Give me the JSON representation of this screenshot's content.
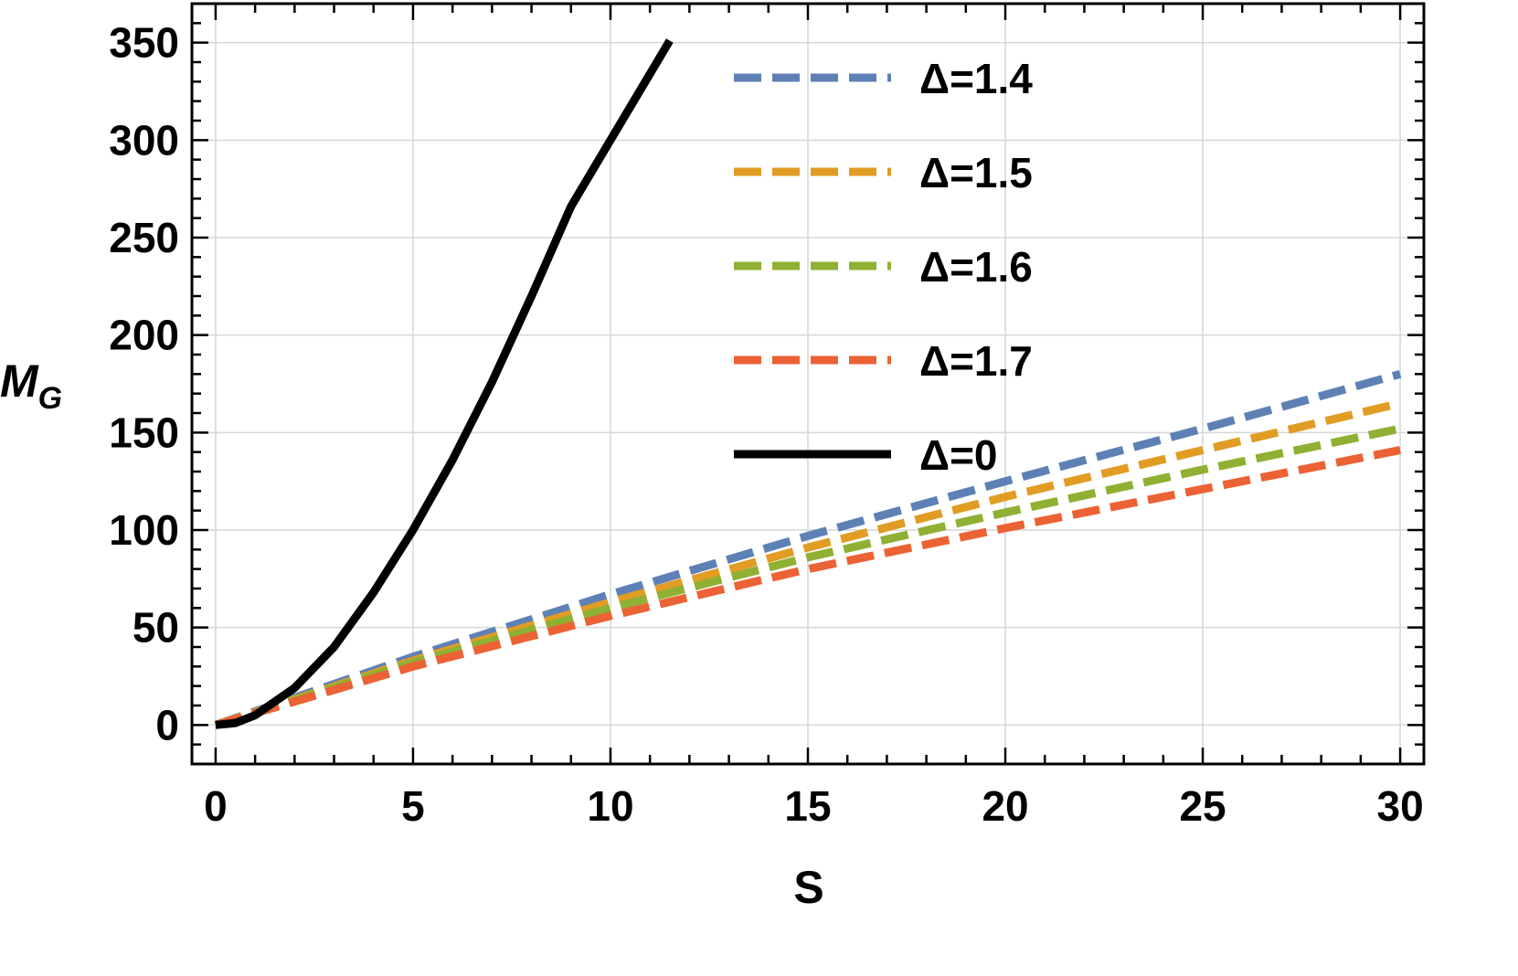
{
  "chart_data": {
    "type": "line",
    "xlabel": "S",
    "ylabel": {
      "main": "M",
      "sub": "G"
    },
    "xlim": [
      -0.6,
      30.6
    ],
    "ylim": [
      -20,
      370
    ],
    "x_ticks": [
      0,
      5,
      10,
      15,
      20,
      25,
      30
    ],
    "y_ticks": [
      0,
      50,
      100,
      150,
      200,
      250,
      300,
      350
    ],
    "grid": true,
    "legend_position": "top-right",
    "series": [
      {
        "name": "Δ=1.4",
        "color": "#5e81b5",
        "dash": "dashed",
        "x": [
          0,
          5,
          10,
          15,
          20,
          25,
          30
        ],
        "y": [
          0,
          35,
          67,
          97,
          125,
          152,
          180
        ]
      },
      {
        "name": "Δ=1.5",
        "color": "#e19c24",
        "dash": "dashed",
        "x": [
          0,
          5,
          10,
          15,
          20,
          25,
          30
        ],
        "y": [
          0,
          33,
          63,
          91,
          117,
          141,
          165
        ]
      },
      {
        "name": "Δ=1.6",
        "color": "#8fb032",
        "dash": "dashed",
        "x": [
          0,
          5,
          10,
          15,
          20,
          25,
          30
        ],
        "y": [
          0,
          32,
          60,
          86,
          109,
          131,
          152
        ]
      },
      {
        "name": "Δ=1.7",
        "color": "#eb6235",
        "dash": "dashed",
        "x": [
          0,
          5,
          10,
          15,
          20,
          25,
          30
        ],
        "y": [
          0,
          30,
          56,
          80,
          101,
          121,
          141
        ]
      },
      {
        "name": "Δ=0",
        "color": "#000000",
        "dash": "solid",
        "x": [
          0,
          0.5,
          1,
          2,
          3,
          4,
          5,
          6,
          7,
          8,
          9,
          10,
          11,
          11.5
        ],
        "y": [
          0,
          1,
          5,
          19,
          40,
          68,
          100,
          136,
          176,
          220,
          266,
          300,
          334,
          351
        ]
      }
    ]
  }
}
